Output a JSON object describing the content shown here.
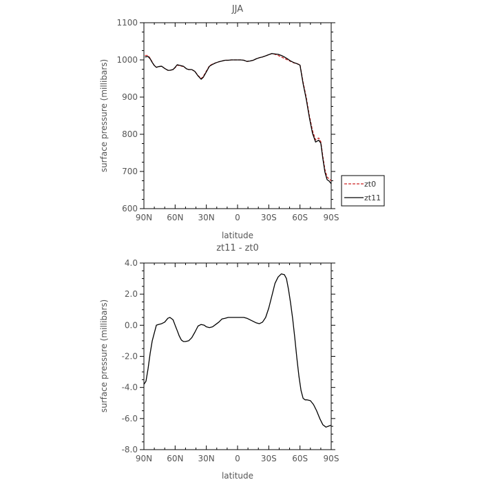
{
  "chart_data": [
    {
      "type": "line",
      "title": "JJA",
      "xlabel": "latitude",
      "ylabel": "surface pressure (millibars)",
      "xlim": [
        90,
        -90
      ],
      "ylim": [
        600,
        1100
      ],
      "x_ticks": [
        {
          "value": 90,
          "label": "90N"
        },
        {
          "value": 60,
          "label": "60N"
        },
        {
          "value": 30,
          "label": "30N"
        },
        {
          "value": 0,
          "label": "0"
        },
        {
          "value": -30,
          "label": "30S"
        },
        {
          "value": -60,
          "label": "60S"
        },
        {
          "value": -90,
          "label": "90S"
        }
      ],
      "y_ticks": [
        {
          "value": 600,
          "label": "600"
        },
        {
          "value": 700,
          "label": "700"
        },
        {
          "value": 800,
          "label": "800"
        },
        {
          "value": 900,
          "label": "900"
        },
        {
          "value": 1000,
          "label": "1000"
        },
        {
          "value": 1100,
          "label": "1100"
        }
      ],
      "legend_position": "right",
      "series": [
        {
          "name": "zt0",
          "color": "#cc2222",
          "dash": "dashed",
          "x": [
            89,
            86,
            84,
            82,
            80,
            78,
            76,
            73,
            70,
            67,
            65,
            62,
            60,
            58,
            55,
            52,
            49,
            47,
            44,
            41,
            38,
            35,
            33,
            30,
            27,
            24,
            21,
            18,
            15,
            12,
            9,
            6,
            3,
            0,
            -3,
            -6,
            -9,
            -12,
            -15,
            -18,
            -21,
            -24,
            -27,
            -30,
            -33,
            -36,
            -39,
            -42,
            -45,
            -48,
            -51,
            -54,
            -57,
            -60,
            -63,
            -66,
            -69,
            -72,
            -75,
            -78,
            -80,
            -82,
            -84,
            -86,
            -88,
            -90
          ],
          "y": [
            1012,
            1012,
            1004,
            994,
            985,
            980,
            982,
            983,
            977,
            972,
            972,
            974,
            979,
            986,
            984,
            982,
            976,
            974,
            974,
            969,
            958,
            950,
            955,
            970,
            984,
            989,
            992,
            995,
            997,
            999,
            999,
            1000,
            1000,
            1000,
            1000,
            999,
            996,
            997,
            999,
            1003,
            1006,
            1008,
            1011,
            1014,
            1017,
            1015,
            1012,
            1008,
            1004,
            1000,
            996,
            992,
            990,
            987,
            940,
            900,
            850,
            810,
            785,
            790,
            780,
            740,
            705,
            685,
            680,
            675
          ]
        },
        {
          "name": "zt11",
          "color": "#000000",
          "dash": "solid",
          "x": [
            89,
            86,
            84,
            82,
            80,
            78,
            76,
            73,
            70,
            67,
            65,
            62,
            60,
            58,
            55,
            52,
            49,
            47,
            44,
            41,
            38,
            35,
            33,
            30,
            27,
            24,
            21,
            18,
            15,
            12,
            9,
            6,
            3,
            0,
            -3,
            -6,
            -9,
            -12,
            -15,
            -18,
            -21,
            -24,
            -27,
            -30,
            -33,
            -36,
            -39,
            -42,
            -45,
            -48,
            -51,
            -54,
            -57,
            -60,
            -63,
            -66,
            -69,
            -72,
            -75,
            -78,
            -80,
            -82,
            -84,
            -86,
            -88,
            -90
          ],
          "y": [
            1008,
            1009,
            1003,
            993,
            985,
            980,
            982,
            983,
            977,
            972,
            972,
            974,
            980,
            987,
            985,
            983,
            976,
            974,
            974,
            969,
            957,
            948,
            953,
            968,
            983,
            988,
            992,
            995,
            997,
            999,
            999,
            1000,
            1000,
            1000,
            1000,
            999,
            996,
            997,
            999,
            1003,
            1006,
            1008,
            1011,
            1014,
            1017,
            1016,
            1015,
            1012,
            1008,
            1003,
            997,
            993,
            990,
            986,
            936,
            895,
            845,
            803,
            779,
            784,
            776,
            734,
            698,
            678,
            674,
            667
          ]
        }
      ]
    },
    {
      "type": "line",
      "title": "zt11 - zt0",
      "xlabel": "latitude",
      "ylabel": "surface pressure (millibars)",
      "xlim": [
        90,
        -90
      ],
      "ylim": [
        -8,
        4
      ],
      "x_ticks": [
        {
          "value": 90,
          "label": "90N"
        },
        {
          "value": 60,
          "label": "60N"
        },
        {
          "value": 30,
          "label": "30N"
        },
        {
          "value": 0,
          "label": "0"
        },
        {
          "value": -30,
          "label": "30S"
        },
        {
          "value": -60,
          "label": "60S"
        },
        {
          "value": -90,
          "label": "90S"
        }
      ],
      "y_ticks": [
        {
          "value": -8,
          "label": "-8.0"
        },
        {
          "value": -6,
          "label": "-6.0"
        },
        {
          "value": -4,
          "label": "-4.0"
        },
        {
          "value": -2,
          "label": "-2.0"
        },
        {
          "value": 0,
          "label": "0.0"
        },
        {
          "value": 2,
          "label": "2.0"
        },
        {
          "value": 4,
          "label": "4.0"
        }
      ],
      "series": [
        {
          "color": "#000000",
          "dash": "solid",
          "x": [
            90,
            88,
            86,
            84,
            82,
            80,
            78,
            76,
            73,
            70,
            67,
            65,
            62,
            60,
            58,
            56,
            54,
            52,
            50,
            47,
            44,
            41,
            38,
            35,
            32,
            30,
            27,
            24,
            21,
            18,
            15,
            12,
            9,
            6,
            3,
            0,
            -3,
            -6,
            -9,
            -12,
            -15,
            -18,
            -21,
            -24,
            -27,
            -30,
            -33,
            -36,
            -39,
            -42,
            -45,
            -47,
            -49,
            -51,
            -53,
            -55,
            -57,
            -59,
            -61,
            -63,
            -65,
            -67,
            -70,
            -73,
            -76,
            -79,
            -82,
            -85,
            -87,
            -89,
            -90
          ],
          "y": [
            -3.8,
            -3.6,
            -2.8,
            -1.8,
            -1.0,
            -0.5,
            0.0,
            0.05,
            0.1,
            0.2,
            0.45,
            0.5,
            0.35,
            0.0,
            -0.35,
            -0.7,
            -0.95,
            -1.05,
            -1.05,
            -1.0,
            -0.8,
            -0.45,
            -0.05,
            0.05,
            0.0,
            -0.1,
            -0.15,
            -0.1,
            0.05,
            0.2,
            0.4,
            0.45,
            0.5,
            0.5,
            0.5,
            0.5,
            0.5,
            0.5,
            0.45,
            0.35,
            0.25,
            0.15,
            0.1,
            0.2,
            0.5,
            1.1,
            1.9,
            2.7,
            3.1,
            3.3,
            3.25,
            3.0,
            2.3,
            1.4,
            0.4,
            -0.8,
            -2.1,
            -3.3,
            -4.2,
            -4.7,
            -4.8,
            -4.8,
            -4.85,
            -5.1,
            -5.5,
            -6.0,
            -6.4,
            -6.55,
            -6.5,
            -6.45,
            -6.45
          ]
        }
      ]
    }
  ]
}
